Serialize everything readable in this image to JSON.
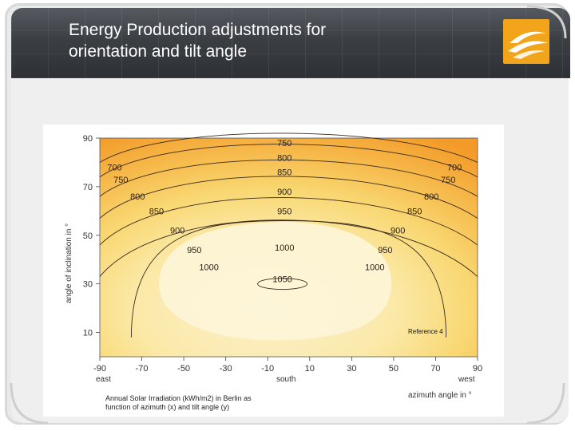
{
  "slide": {
    "title_line1": "Energy Production adjustments for",
    "title_line2": "orientation and tilt angle",
    "caption_line1": "Annual Solar Irradiation (kWh/m2) in Berlin as",
    "caption_line2": "function of azimuth (x) and tilt angle (y)",
    "reference": "Reference 4"
  },
  "colors": {
    "header": "#3b3f44",
    "logo": "#f2a51a",
    "contour_line": "#3a2a1a",
    "fill_high": "#fbf1cc",
    "fill_low": "#f39a28"
  },
  "icons": {
    "logo": "solar-swoosh-logo-icon"
  },
  "chart_data": {
    "type": "contour",
    "xlabel": "azimuth angle in °",
    "ylabel": "angle of inclination in °",
    "xlim": [
      -90,
      90
    ],
    "ylim": [
      0,
      90
    ],
    "x_ticks": [
      "-90",
      "-70",
      "-50",
      "-30",
      "-10",
      "10",
      "30",
      "50",
      "70",
      "90"
    ],
    "y_ticks": [
      "10",
      "30",
      "50",
      "70",
      "90"
    ],
    "x_direction_labels": {
      "east": "east",
      "south": "south",
      "west": "west"
    },
    "grid": false,
    "contour_levels": [
      700,
      750,
      800,
      850,
      900,
      950,
      1000,
      1050
    ],
    "contour_labels": [
      {
        "text": "750",
        "x": -2,
        "y": 88
      },
      {
        "text": "800",
        "x": -2,
        "y": 82
      },
      {
        "text": "850",
        "x": -2,
        "y": 76
      },
      {
        "text": "900",
        "x": -2,
        "y": 68
      },
      {
        "text": "950",
        "x": -2,
        "y": 60
      },
      {
        "text": "1000",
        "x": -2,
        "y": 45
      },
      {
        "text": "1050",
        "x": -3,
        "y": 32
      },
      {
        "text": "700",
        "x": -83,
        "y": 78
      },
      {
        "text": "750",
        "x": -80,
        "y": 73
      },
      {
        "text": "800",
        "x": -72,
        "y": 66
      },
      {
        "text": "850",
        "x": -63,
        "y": 60
      },
      {
        "text": "900",
        "x": -53,
        "y": 52
      },
      {
        "text": "950",
        "x": -45,
        "y": 44
      },
      {
        "text": "1000",
        "x": -38,
        "y": 37
      },
      {
        "text": "700",
        "x": 79,
        "y": 78
      },
      {
        "text": "750",
        "x": 76,
        "y": 73
      },
      {
        "text": "800",
        "x": 68,
        "y": 66
      },
      {
        "text": "850",
        "x": 60,
        "y": 60
      },
      {
        "text": "900",
        "x": 52,
        "y": 52
      },
      {
        "text": "950",
        "x": 46,
        "y": 44
      },
      {
        "text": "1000",
        "x": 41,
        "y": 37
      }
    ]
  }
}
